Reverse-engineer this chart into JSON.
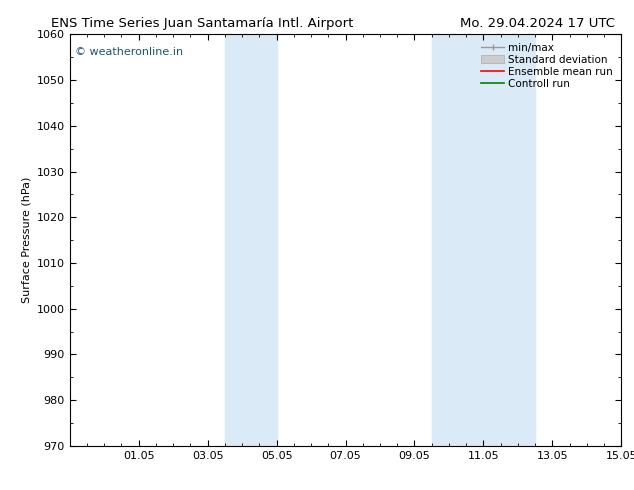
{
  "title_left": "ENS Time Series Juan Santamaría Intl. Airport",
  "title_right": "Mo. 29.04.2024 17 UTC",
  "ylabel": "Surface Pressure (hPa)",
  "ylim": [
    970,
    1060
  ],
  "yticks": [
    970,
    980,
    990,
    1000,
    1010,
    1020,
    1030,
    1040,
    1050,
    1060
  ],
  "xtick_labels": [
    "01.05",
    "03.05",
    "05.05",
    "07.05",
    "09.05",
    "11.05",
    "13.05",
    "15.05"
  ],
  "xtick_positions": [
    2,
    4,
    6,
    8,
    10,
    12,
    14,
    16
  ],
  "shaded_regions": [
    {
      "x_start": 4.5,
      "x_end": 6.0
    },
    {
      "x_start": 10.5,
      "x_end": 13.5
    }
  ],
  "shaded_color": "#daeaf7",
  "background_color": "#ffffff",
  "watermark_text": "© weatheronline.in",
  "watermark_color": "#1a5276",
  "legend_entries": [
    {
      "label": "min/max",
      "color": "#aaaaaa"
    },
    {
      "label": "Standard deviation",
      "color": "#cccccc"
    },
    {
      "label": "Ensemble mean run",
      "color": "red"
    },
    {
      "label": "Controll run",
      "color": "green"
    }
  ],
  "font_size_title": 9.5,
  "font_size_axis": 8,
  "font_size_tick": 8,
  "font_size_legend": 7.5,
  "font_size_watermark": 8
}
